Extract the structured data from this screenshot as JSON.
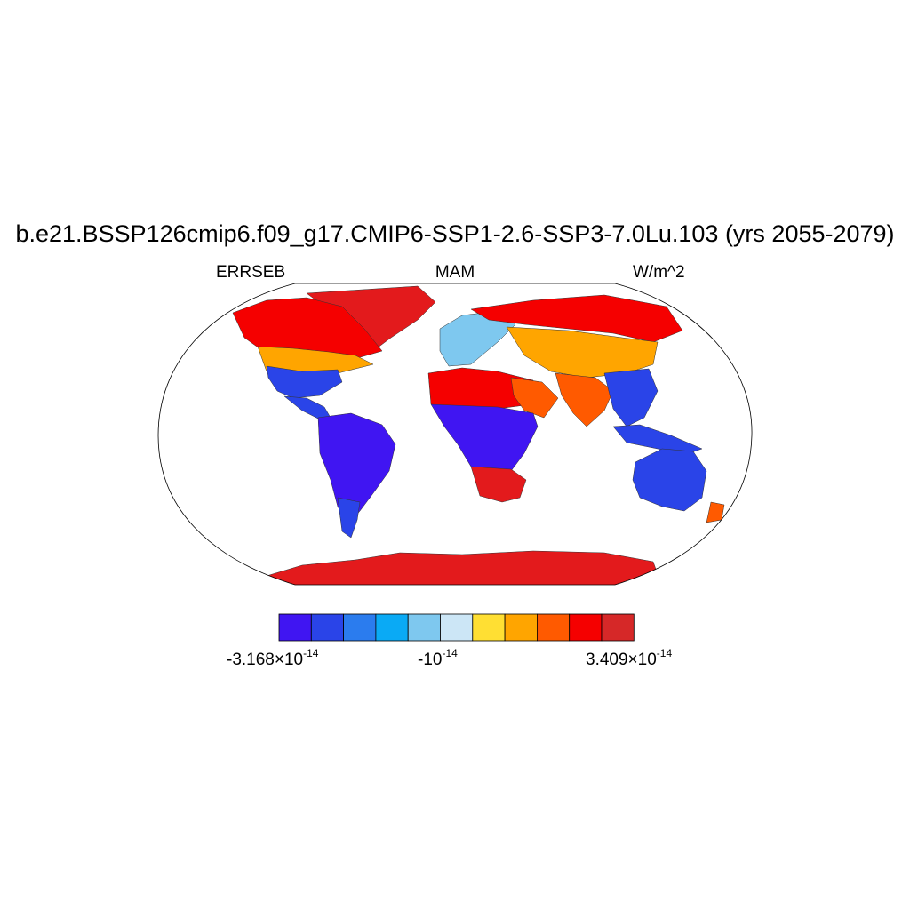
{
  "title": "b.e21.BSSP126cmip6.f09_g17.CMIP6-SSP1-2.6-SSP3-7.0Lu.103 (yrs 2055-2079)",
  "subtitle_left": "ERRSEB",
  "subtitle_center": "MAM",
  "subtitle_right": "W/m^2",
  "map": {
    "projection": "Robinson",
    "land_default_color": "#e31a1c",
    "regions": [
      {
        "name": "antarctica",
        "color": "#e31a1c"
      },
      {
        "name": "greenland",
        "color": "#e31a1c"
      },
      {
        "name": "canada-arctic",
        "color": "#f50000"
      },
      {
        "name": "north-america",
        "color": "#ffa500"
      },
      {
        "name": "north-america-south",
        "color": "#2a44e8"
      },
      {
        "name": "central-america",
        "color": "#2a44e8"
      },
      {
        "name": "south-america",
        "color": "#4015f2"
      },
      {
        "name": "south-america-south",
        "color": "#2a44e8"
      },
      {
        "name": "eurasia-north",
        "color": "#f50000"
      },
      {
        "name": "eurasia-middle",
        "color": "#ffa500"
      },
      {
        "name": "europe",
        "color": "#7ec8ef"
      },
      {
        "name": "sahara",
        "color": "#f50000"
      },
      {
        "name": "arabia",
        "color": "#ff5a00"
      },
      {
        "name": "central-africa",
        "color": "#4015f2"
      },
      {
        "name": "southern-africa",
        "color": "#e31a1c"
      },
      {
        "name": "india",
        "color": "#ff5a00"
      },
      {
        "name": "southeast-asia",
        "color": "#2a44e8"
      },
      {
        "name": "indonesia",
        "color": "#2a44e8"
      },
      {
        "name": "australia",
        "color": "#2a44e8"
      },
      {
        "name": "new-zealand",
        "color": "#ff5a00"
      }
    ]
  },
  "colorbar": {
    "colors": [
      "#4015f2",
      "#2a44e8",
      "#2b7cee",
      "#0aaaf5",
      "#7ec8ef",
      "#cce6f6",
      "#ffdf33",
      "#ffa500",
      "#ff5a00",
      "#f50000",
      "#d62828"
    ],
    "min_label": {
      "base": "-3.168×10",
      "exp": "-14"
    },
    "mid_label": {
      "base": "-10",
      "exp": "-14"
    },
    "max_label": {
      "base": "3.409×10",
      "exp": "-14"
    }
  }
}
